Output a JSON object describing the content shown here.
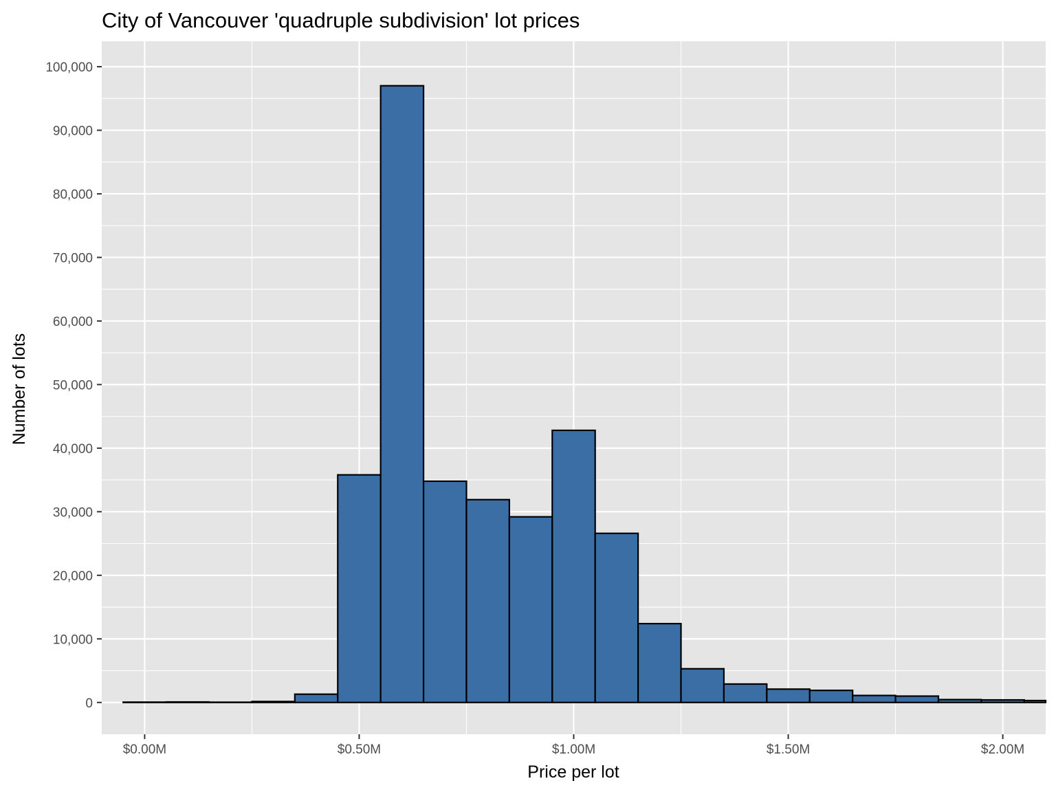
{
  "chart_data": {
    "type": "bar",
    "title": "City of Vancouver 'quadruple subdivision' lot prices",
    "xlabel": "Price per lot",
    "ylabel": "Number of lots",
    "bin_width": 100000,
    "bins": [
      {
        "x0": -50000,
        "x1": 50000,
        "count": 50
      },
      {
        "x0": 50000,
        "x1": 150000,
        "count": 80
      },
      {
        "x0": 150000,
        "x1": 250000,
        "count": 40
      },
      {
        "x0": 250000,
        "x1": 350000,
        "count": 150
      },
      {
        "x0": 350000,
        "x1": 450000,
        "count": 1300
      },
      {
        "x0": 450000,
        "x1": 550000,
        "count": 35800
      },
      {
        "x0": 550000,
        "x1": 650000,
        "count": 97000
      },
      {
        "x0": 650000,
        "x1": 750000,
        "count": 34800
      },
      {
        "x0": 750000,
        "x1": 850000,
        "count": 31900
      },
      {
        "x0": 850000,
        "x1": 950000,
        "count": 29200
      },
      {
        "x0": 950000,
        "x1": 1050000,
        "count": 42800
      },
      {
        "x0": 1050000,
        "x1": 1150000,
        "count": 26600
      },
      {
        "x0": 1150000,
        "x1": 1250000,
        "count": 12400
      },
      {
        "x0": 1250000,
        "x1": 1350000,
        "count": 5300
      },
      {
        "x0": 1350000,
        "x1": 1450000,
        "count": 2900
      },
      {
        "x0": 1450000,
        "x1": 1550000,
        "count": 2100
      },
      {
        "x0": 1550000,
        "x1": 1650000,
        "count": 1900
      },
      {
        "x0": 1650000,
        "x1": 1750000,
        "count": 1100
      },
      {
        "x0": 1750000,
        "x1": 1850000,
        "count": 1000
      },
      {
        "x0": 1850000,
        "x1": 1950000,
        "count": 450
      },
      {
        "x0": 1950000,
        "x1": 2050000,
        "count": 400
      },
      {
        "x0": 2050000,
        "x1": 2150000,
        "count": 300
      }
    ],
    "xlim": [
      -100000,
      2100000
    ],
    "ylim": [
      -5000,
      104000
    ],
    "x_ticks": [
      0,
      500000,
      1000000,
      1500000,
      2000000
    ],
    "x_tick_labels": [
      "$0.00M",
      "$0.50M",
      "$1.00M",
      "$1.50M",
      "$2.00M"
    ],
    "y_ticks": [
      0,
      10000,
      20000,
      30000,
      40000,
      50000,
      60000,
      70000,
      80000,
      90000,
      100000
    ],
    "y_tick_labels": [
      "0",
      "10,000",
      "20,000",
      "30,000",
      "40,000",
      "50,000",
      "60,000",
      "70,000",
      "80,000",
      "90,000",
      "100,000"
    ],
    "grid": true,
    "colors": {
      "bar_fill": "#3a6ea5",
      "bar_stroke": "#000000",
      "panel_bg": "#e5e5e5",
      "grid_major": "#ffffff",
      "tick_text": "#4d4d4d"
    }
  }
}
